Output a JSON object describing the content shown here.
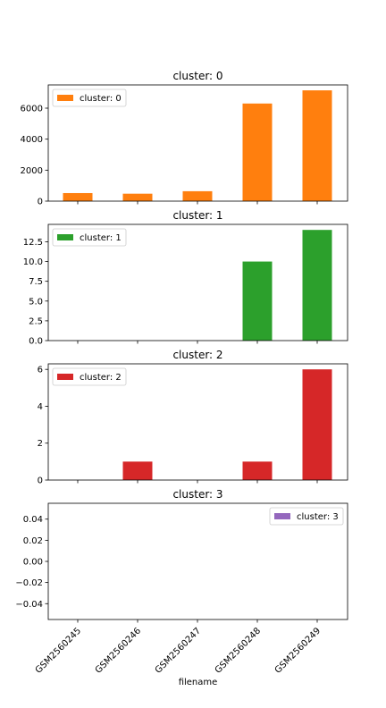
{
  "figure": {
    "xlabel": "filename"
  },
  "chart_data": [
    {
      "type": "bar",
      "title": "cluster: 0",
      "categories": [
        "GSM2560245",
        "GSM2560246",
        "GSM2560247",
        "GSM2560248",
        "GSM2560249"
      ],
      "series": [
        {
          "name": "cluster: 0",
          "values": [
            520,
            480,
            640,
            6300,
            7150
          ]
        }
      ],
      "color": "#ff7f0e",
      "ylim": [
        0,
        7500
      ],
      "yticks": [
        0,
        2000,
        4000,
        6000
      ],
      "ytick_labels": [
        "0",
        "2000",
        "4000",
        "6000"
      ],
      "legend": "top-left"
    },
    {
      "type": "bar",
      "title": "cluster: 1",
      "categories": [
        "GSM2560245",
        "GSM2560246",
        "GSM2560247",
        "GSM2560248",
        "GSM2560249"
      ],
      "series": [
        {
          "name": "cluster: 1",
          "values": [
            0,
            0,
            0,
            10,
            14
          ]
        }
      ],
      "color": "#2ca02c",
      "ylim": [
        0,
        14.7
      ],
      "yticks": [
        0,
        2.5,
        5,
        7.5,
        10,
        12.5
      ],
      "ytick_labels": [
        "0.0",
        "2.5",
        "5.0",
        "7.5",
        "10.0",
        "12.5"
      ],
      "legend": "top-left"
    },
    {
      "type": "bar",
      "title": "cluster: 2",
      "categories": [
        "GSM2560245",
        "GSM2560246",
        "GSM2560247",
        "GSM2560248",
        "GSM2560249"
      ],
      "series": [
        {
          "name": "cluster: 2",
          "values": [
            0,
            1,
            0,
            1,
            6
          ]
        }
      ],
      "color": "#d62728",
      "ylim": [
        0,
        6.3
      ],
      "yticks": [
        0,
        2,
        4,
        6
      ],
      "ytick_labels": [
        "0",
        "2",
        "4",
        "6"
      ],
      "legend": "top-left"
    },
    {
      "type": "bar",
      "title": "cluster: 3",
      "categories": [
        "GSM2560245",
        "GSM2560246",
        "GSM2560247",
        "GSM2560248",
        "GSM2560249"
      ],
      "series": [
        {
          "name": "cluster: 3",
          "values": [
            0,
            0,
            0,
            0,
            0
          ]
        }
      ],
      "color": "#9467bd",
      "ylim": [
        -0.055,
        0.055
      ],
      "yticks": [
        -0.04,
        -0.02,
        0,
        0.02,
        0.04
      ],
      "ytick_labels": [
        "−0.04",
        "−0.02",
        "0.00",
        "0.02",
        "0.04"
      ],
      "legend": "top-right"
    }
  ]
}
